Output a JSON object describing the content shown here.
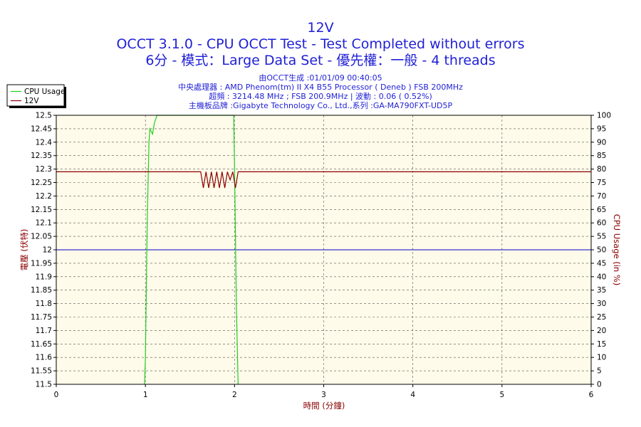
{
  "chart_data": {
    "type": "line",
    "title": "12V",
    "subtitle_lines": [
      "OCCT 3.1.0 - CPU OCCT Test - Test Completed without errors",
      "6分 - 模式：Large Data Set - 優先權：一般 - 4 threads"
    ],
    "info_lines": [
      "由OCCT生成 :01/01/09 00:40:05",
      "中央處理器 : AMD Phenom(tm) II X4 B55 Processor ( Deneb ) FSB 200MHz",
      "超頻 : 3214.48 MHz ; FSB 200.9MHz | 波動 : 0.06 ( 0.52%)",
      "主機板品牌 :Gigabyte Technology Co., Ltd.,系列 :GA-MA790FXT-UD5P"
    ],
    "xlabel": "時間 (分鐘)",
    "ylabel_left": "電壓 (伏特)",
    "ylabel_right": "CPU Usage (in %)",
    "xlim": [
      0,
      6
    ],
    "ylim_left": [
      11.5,
      12.5
    ],
    "ylim_right": [
      0,
      100
    ],
    "x_ticks": [
      "0",
      "1",
      "2",
      "3",
      "4",
      "5",
      "6"
    ],
    "y_left_ticks": [
      "11.5",
      "11.55",
      "11.6",
      "11.65",
      "11.7",
      "11.75",
      "11.8",
      "11.85",
      "11.9",
      "11.95",
      "12",
      "12.05",
      "12.1",
      "12.15",
      "12.2",
      "12.25",
      "12.3",
      "12.35",
      "12.4",
      "12.45",
      "12.5"
    ],
    "y_right_ticks": [
      "0",
      "5",
      "10",
      "15",
      "20",
      "25",
      "30",
      "35",
      "40",
      "45",
      "50",
      "55",
      "60",
      "65",
      "70",
      "75",
      "80",
      "85",
      "90",
      "95",
      "100"
    ],
    "reference_line": {
      "value": 12.0,
      "color": "#0000cc"
    },
    "grid": true,
    "legend_position": "top-left",
    "series": [
      {
        "name": "CPU Usage",
        "axis": "right",
        "color": "#22cc22",
        "x": [
          0.99,
          1.0,
          1.02,
          1.04,
          1.05,
          1.08,
          1.1,
          1.13,
          1.2,
          1.5,
          1.8,
          1.99,
          2.0,
          2.02,
          2.04
        ],
        "y": [
          0,
          10,
          60,
          90,
          95,
          93,
          97,
          100,
          100,
          100,
          100,
          100,
          80,
          30,
          0
        ]
      },
      {
        "name": "12V",
        "axis": "left",
        "color": "#8b0000",
        "x": [
          0,
          1.62,
          1.65,
          1.68,
          1.71,
          1.74,
          1.77,
          1.8,
          1.83,
          1.86,
          1.89,
          1.92,
          1.95,
          1.98,
          2.01,
          2.04,
          2.07,
          6
        ],
        "y": [
          12.29,
          12.29,
          12.23,
          12.29,
          12.23,
          12.29,
          12.23,
          12.29,
          12.23,
          12.29,
          12.23,
          12.29,
          12.26,
          12.29,
          12.23,
          12.29,
          12.29,
          12.29
        ]
      }
    ]
  }
}
